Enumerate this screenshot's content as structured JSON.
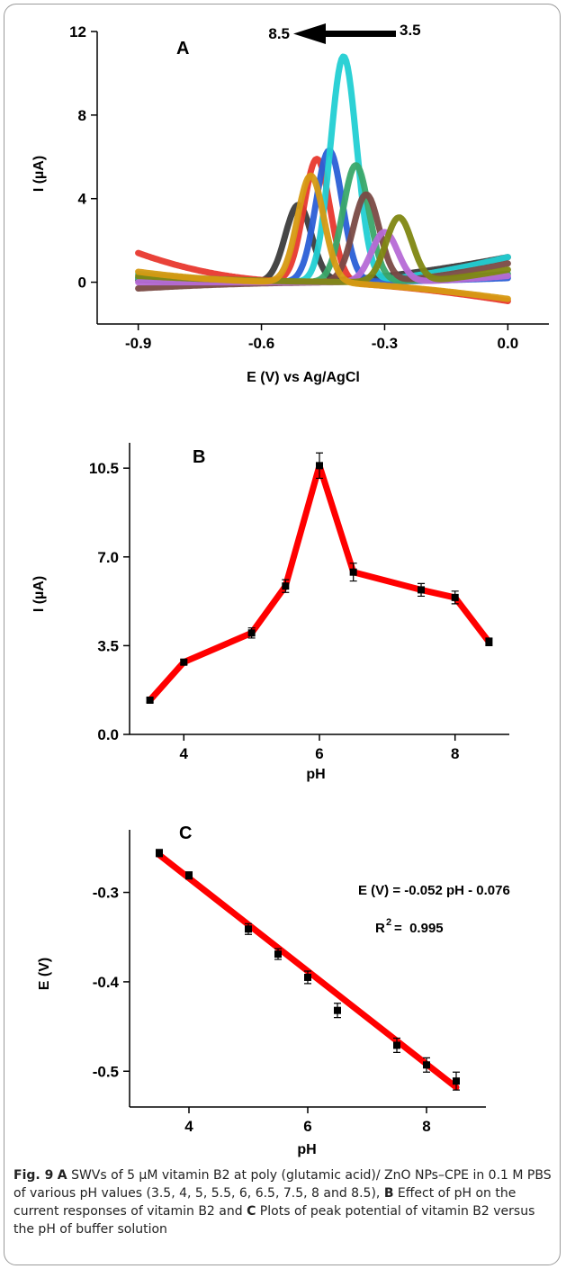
{
  "chart_data": [
    {
      "id": "A",
      "type": "line",
      "panel_label": "A",
      "xlabel": "E (V) vs Ag/AgCl",
      "ylabel": "I (µA)",
      "xlim": [
        -1.0,
        0.1
      ],
      "ylim": [
        -2,
        12
      ],
      "xticks": [
        -0.9,
        -0.6,
        -0.3,
        0.0
      ],
      "xtick_labels": [
        "-0.9",
        "-0.6",
        "-0.3",
        "0.0"
      ],
      "yticks": [
        0,
        4,
        8,
        12
      ],
      "ytick_labels": [
        "0",
        "4",
        "8",
        "12"
      ],
      "arrow": {
        "from_label": "3.5",
        "to_label": "8.5"
      },
      "series": [
        {
          "color": "#3c3c3c",
          "peak_x": -0.51,
          "peak_y": 3.7,
          "left": 0.1,
          "right": 1.2
        },
        {
          "color": "#e8382e",
          "peak_x": -0.465,
          "peak_y": 5.9,
          "left": 1.4,
          "right": -0.9
        },
        {
          "color": "#2a5fd6",
          "peak_x": -0.435,
          "peak_y": 6.3,
          "left": 0.2,
          "right": 0.2
        },
        {
          "color": "#22cfd3",
          "peak_x": -0.4,
          "peak_y": 10.8,
          "left": 0.4,
          "right": 1.2
        },
        {
          "color": "#3aa86a",
          "peak_x": -0.37,
          "peak_y": 5.6,
          "left": 0.2,
          "right": 0.4
        },
        {
          "color": "#7a4a45",
          "peak_x": -0.345,
          "peak_y": 4.2,
          "left": -0.3,
          "right": 0.9
        },
        {
          "color": "#b66ad6",
          "peak_x": -0.3,
          "peak_y": 2.4,
          "left": 0.0,
          "right": 0.3
        },
        {
          "color": "#7f8712",
          "peak_x": -0.265,
          "peak_y": 3.1,
          "left": 0.3,
          "right": 0.6
        },
        {
          "color": "#d69a12",
          "peak_x": -0.48,
          "peak_y": 5.1,
          "left": 0.5,
          "right": -0.8
        }
      ]
    },
    {
      "id": "B",
      "type": "line",
      "panel_label": "B",
      "xlabel": "pH",
      "ylabel": "I (µA)",
      "xlim": [
        3.2,
        8.8
      ],
      "ylim": [
        0,
        11.5
      ],
      "xticks": [
        4,
        6,
        8
      ],
      "xtick_labels": [
        "4",
        "6",
        "8"
      ],
      "yticks": [
        0,
        3.5,
        7.0,
        10.5
      ],
      "ytick_labels": [
        "0.0",
        "3.5",
        "7.0",
        "10.5"
      ],
      "line_color": "#ff0000",
      "x": [
        3.5,
        4,
        5,
        5.5,
        6,
        6.5,
        7.5,
        8,
        8.5
      ],
      "y": [
        1.35,
        2.85,
        4.0,
        5.85,
        10.6,
        6.4,
        5.7,
        5.4,
        3.65
      ],
      "error": [
        0.08,
        0.1,
        0.2,
        0.25,
        0.5,
        0.35,
        0.25,
        0.25,
        0.15
      ]
    },
    {
      "id": "C",
      "type": "scatter",
      "panel_label": "C",
      "xlabel": "pH",
      "ylabel": "E (V)",
      "xlim": [
        3.0,
        9.0
      ],
      "ylim": [
        -0.54,
        -0.23
      ],
      "xticks": [
        4,
        6,
        8
      ],
      "xtick_labels": [
        "4",
        "6",
        "8"
      ],
      "yticks": [
        -0.3,
        -0.4,
        -0.5
      ],
      "ytick_labels": [
        "-0.3",
        "-0.4",
        "-0.5"
      ],
      "line_color": "#ff0000",
      "fit": {
        "slope": -0.052,
        "intercept": -0.076,
        "x_range": [
          3.5,
          8.5
        ]
      },
      "equation": "E (V) = -0.052 pH - 0.076",
      "r2_prefix": "R",
      "r2_sup": "2",
      "r2_value": "=  0.995",
      "x": [
        3.5,
        4,
        5,
        5.5,
        6,
        6.5,
        7.5,
        8,
        8.5
      ],
      "y": [
        -0.256,
        -0.281,
        -0.341,
        -0.369,
        -0.395,
        -0.432,
        -0.471,
        -0.493,
        -0.511
      ],
      "error": [
        0.004,
        0.004,
        0.006,
        0.006,
        0.007,
        0.008,
        0.008,
        0.008,
        0.01
      ]
    }
  ],
  "caption": {
    "fig": "Fig. 9",
    "A": "A",
    "text1": " SWVs of 5 µM vitamin B2 at poly (glutamic acid)/ ZnO NPs–CPE in 0.1 M PBS of various pH values (3.5, 4, 5, 5.5, 6, 6.5, 7.5, 8 and 8.5), ",
    "B": "B",
    "text2": " Effect of pH on the current responses of vitamin B2 and ",
    "C": "C",
    "text3": " Plots of peak potential of vitamin B2 versus the pH of buffer solution"
  }
}
